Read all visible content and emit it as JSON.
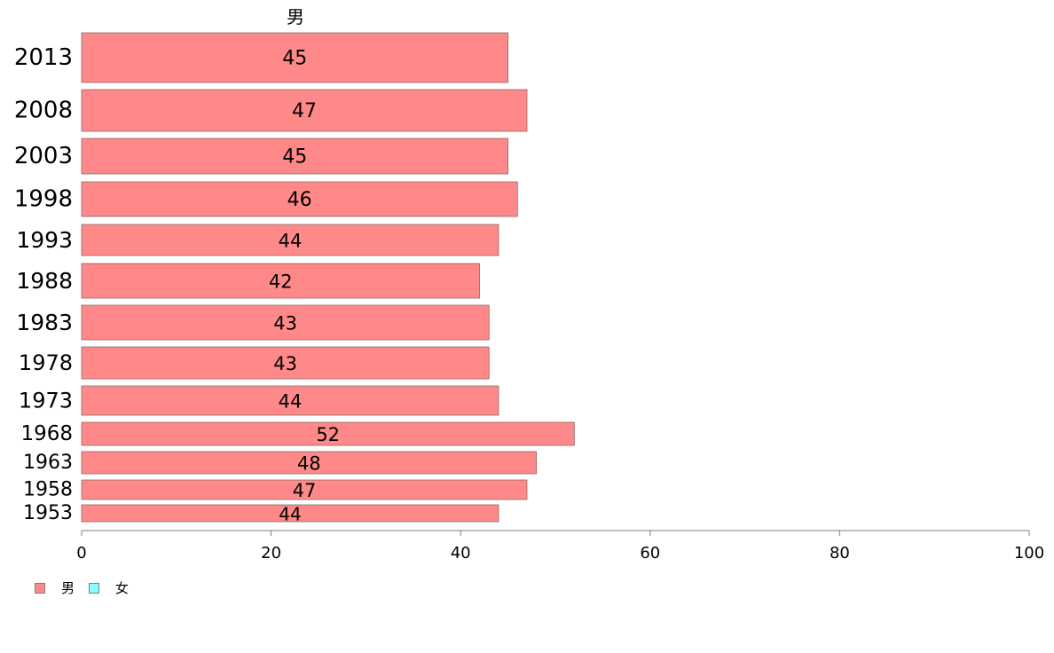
{
  "chart_data": {
    "type": "bar",
    "orientation": "horizontal",
    "title": "男",
    "categories": [
      "2013",
      "2008",
      "2003",
      "1998",
      "1993",
      "1988",
      "1983",
      "1978",
      "1973",
      "1968",
      "1963",
      "1958",
      "1953"
    ],
    "series": [
      {
        "name": "男",
        "values": [
          45,
          47,
          45,
          46,
          44,
          42,
          43,
          43,
          44,
          52,
          48,
          47,
          44
        ]
      }
    ],
    "x_ticks": [
      "0",
      "20",
      "40",
      "60",
      "80",
      "100"
    ],
    "xlim": [
      0,
      100
    ],
    "grid": false,
    "legend": {
      "position": "bottom-left",
      "entries": [
        {
          "label": "男",
          "color": "#ff8888"
        },
        {
          "label": "女",
          "color": "#88ffff"
        }
      ]
    },
    "colors": {
      "male": "#ff8888",
      "female": "#88ffff",
      "bar_border": "#8c6a6a",
      "axis": "#7f7f7f"
    }
  }
}
